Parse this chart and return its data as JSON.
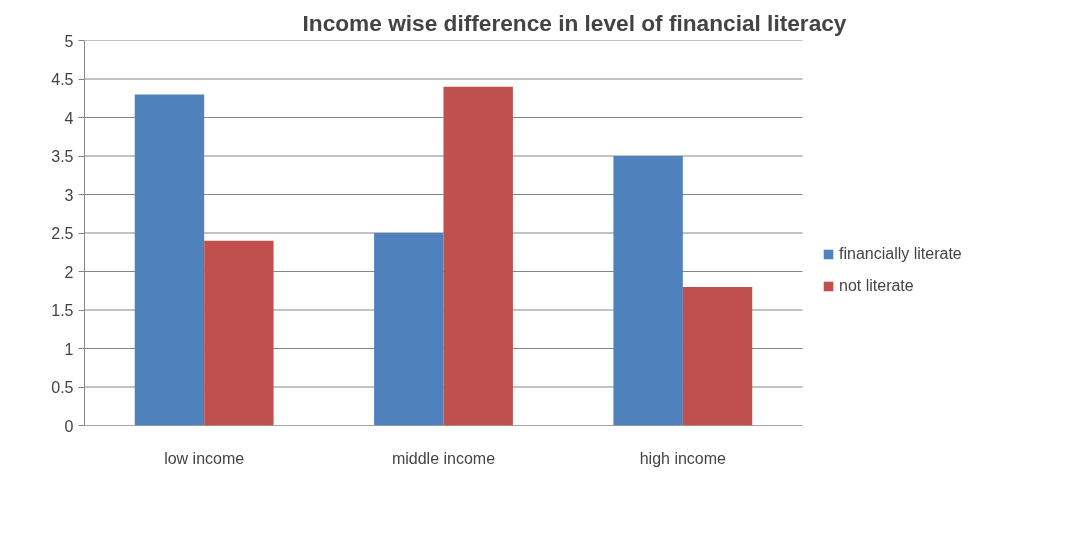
{
  "chart_data": {
    "type": "bar",
    "title": "Income wise difference in level of financial literacy",
    "categories": [
      "low income",
      "middle income",
      "high income"
    ],
    "series": [
      {
        "name": "financially literate",
        "color": "#4f81bd",
        "values": [
          4.3,
          2.5,
          3.5
        ]
      },
      {
        "name": "not literate",
        "color": "#c0504d",
        "values": [
          2.4,
          4.4,
          1.8
        ]
      }
    ],
    "ylim": [
      0,
      5
    ],
    "yticks": [
      0,
      0.5,
      1,
      1.5,
      2,
      2.5,
      3,
      3.5,
      4,
      4.5,
      5
    ],
    "grid": "y",
    "legend": "right"
  }
}
